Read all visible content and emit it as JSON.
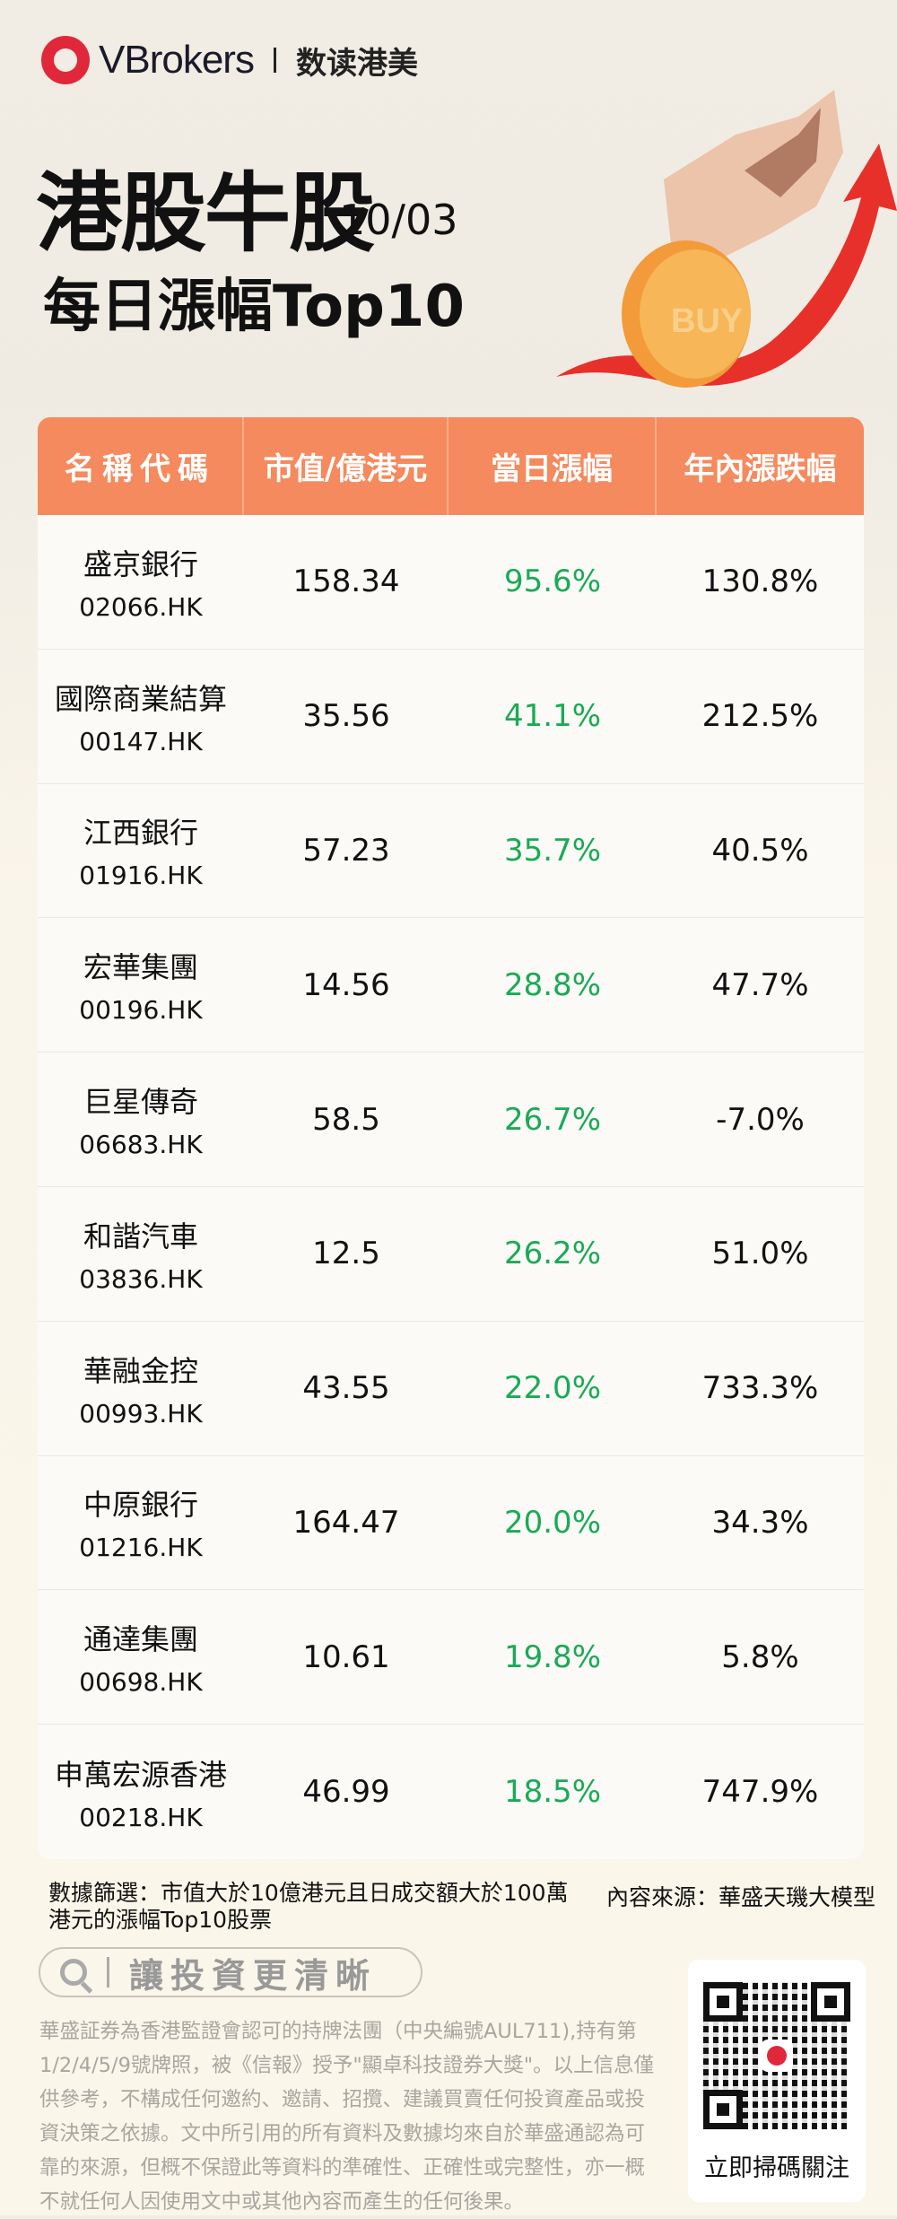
{
  "header": {
    "brand": "VBrokers",
    "sub_brand": "数读港美",
    "title": "港股牛股",
    "date": "10/03",
    "subtitle": "每日漲幅Top10",
    "hero_coin_text": "BUY"
  },
  "colors": {
    "header_bg": "#f58a5e",
    "gain": "#1aaa55",
    "brand_red": "#e0283a"
  },
  "table": {
    "headers": [
      "名稱代碼",
      "市值/億港元",
      "當日漲幅",
      "年內漲跌幅"
    ],
    "rows": [
      {
        "name": "盛京銀行",
        "code": "02066.HK",
        "mcap": "158.34",
        "day": "95.6%",
        "ytd": "130.8%"
      },
      {
        "name": "國際商業結算",
        "code": "00147.HK",
        "mcap": "35.56",
        "day": "41.1%",
        "ytd": "212.5%"
      },
      {
        "name": "江西銀行",
        "code": "01916.HK",
        "mcap": "57.23",
        "day": "35.7%",
        "ytd": "40.5%"
      },
      {
        "name": "宏華集團",
        "code": "00196.HK",
        "mcap": "14.56",
        "day": "28.8%",
        "ytd": "47.7%"
      },
      {
        "name": "巨星傳奇",
        "code": "06683.HK",
        "mcap": "58.5",
        "day": "26.7%",
        "ytd": "-7.0%"
      },
      {
        "name": "和諧汽車",
        "code": "03836.HK",
        "mcap": "12.5",
        "day": "26.2%",
        "ytd": "51.0%"
      },
      {
        "name": "華融金控",
        "code": "00993.HK",
        "mcap": "43.55",
        "day": "22.0%",
        "ytd": "733.3%"
      },
      {
        "name": "中原銀行",
        "code": "01216.HK",
        "mcap": "164.47",
        "day": "20.0%",
        "ytd": "34.3%"
      },
      {
        "name": "通達集團",
        "code": "00698.HK",
        "mcap": "10.61",
        "day": "19.8%",
        "ytd": "5.8%"
      },
      {
        "name": "申萬宏源香港",
        "code": "00218.HK",
        "mcap": "46.99",
        "day": "18.5%",
        "ytd": "747.9%"
      }
    ]
  },
  "footer": {
    "note": "數據篩選：市值大於10億港元且日成交額大於100萬港元的漲幅Top10股票",
    "source": "內容來源：華盛天璣大模型",
    "slogan": "讓投資更清晰",
    "disclaimer": "華盛証券為香港監證會認可的持牌法團（中央編號AUL711),持有第1/2/4/5/9號牌照，被《信報》授予\"顯卓科技證券大獎\"。以上信息僅供參考，不構成任何邀約、邀請、招攬、建議買賣任何投資產品或投資決策之依據。文中所引用的所有資料及數據均來自於華盛通認為可靠的來源，但概不保證此等資料的準確性、正確性或完整性，亦一概不就任何人因使用文中或其他內容而產生的任何後果。",
    "qr_label": "立即掃碼關注"
  }
}
